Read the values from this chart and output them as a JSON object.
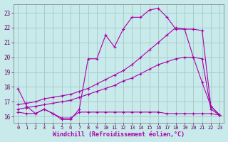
{
  "xlabel": "Windchill (Refroidissement éolien,°C)",
  "bg_color": "#c8eaea",
  "grid_color": "#a8cccc",
  "line_color": "#aa00aa",
  "xlim": [
    -0.5,
    23.5
  ],
  "ylim": [
    15.6,
    23.6
  ],
  "yticks": [
    16,
    17,
    18,
    19,
    20,
    21,
    22,
    23
  ],
  "xticks": [
    0,
    1,
    2,
    3,
    4,
    5,
    6,
    7,
    8,
    9,
    10,
    11,
    12,
    13,
    14,
    15,
    16,
    17,
    18,
    19,
    20,
    21,
    22,
    23
  ],
  "lines": [
    {
      "x": [
        0,
        1,
        2,
        3,
        4,
        5,
        6,
        7,
        8,
        9,
        10,
        11,
        12,
        13,
        14,
        15,
        16,
        17,
        18,
        19,
        20,
        21,
        22,
        23
      ],
      "y": [
        17.9,
        16.7,
        16.2,
        16.5,
        16.2,
        15.8,
        15.8,
        16.5,
        19.9,
        19.9,
        21.5,
        20.7,
        21.9,
        22.7,
        22.7,
        23.2,
        23.3,
        22.7,
        21.9,
        21.9,
        20.0,
        18.3,
        16.7,
        16.1
      ]
    },
    {
      "x": [
        0,
        1,
        2,
        3,
        4,
        5,
        6,
        7,
        8,
        9,
        10,
        11,
        12,
        13,
        14,
        15,
        16,
        17,
        18,
        19,
        20,
        21,
        22,
        23
      ],
      "y": [
        16.8,
        16.9,
        17.0,
        17.2,
        17.3,
        17.4,
        17.5,
        17.7,
        17.9,
        18.2,
        18.5,
        18.8,
        19.1,
        19.5,
        20.0,
        20.5,
        21.0,
        21.5,
        22.0,
        21.9,
        21.9,
        21.8,
        16.7,
        16.1
      ]
    },
    {
      "x": [
        0,
        1,
        2,
        3,
        4,
        5,
        6,
        7,
        8,
        9,
        10,
        11,
        12,
        13,
        14,
        15,
        16,
        17,
        18,
        19,
        20,
        21,
        22,
        23
      ],
      "y": [
        16.5,
        16.6,
        16.7,
        16.8,
        16.9,
        17.0,
        17.1,
        17.3,
        17.5,
        17.7,
        17.9,
        18.1,
        18.4,
        18.6,
        18.9,
        19.2,
        19.5,
        19.7,
        19.9,
        20.0,
        20.0,
        19.9,
        16.5,
        16.1
      ]
    },
    {
      "x": [
        0,
        1,
        2,
        3,
        4,
        5,
        6,
        7,
        8,
        9,
        10,
        11,
        12,
        13,
        14,
        15,
        16,
        17,
        18,
        19,
        20,
        21,
        22,
        23
      ],
      "y": [
        16.3,
        16.2,
        16.2,
        16.5,
        16.2,
        15.9,
        15.9,
        16.3,
        16.3,
        16.3,
        16.3,
        16.3,
        16.3,
        16.3,
        16.3,
        16.3,
        16.3,
        16.2,
        16.2,
        16.2,
        16.2,
        16.2,
        16.2,
        16.1
      ]
    }
  ]
}
